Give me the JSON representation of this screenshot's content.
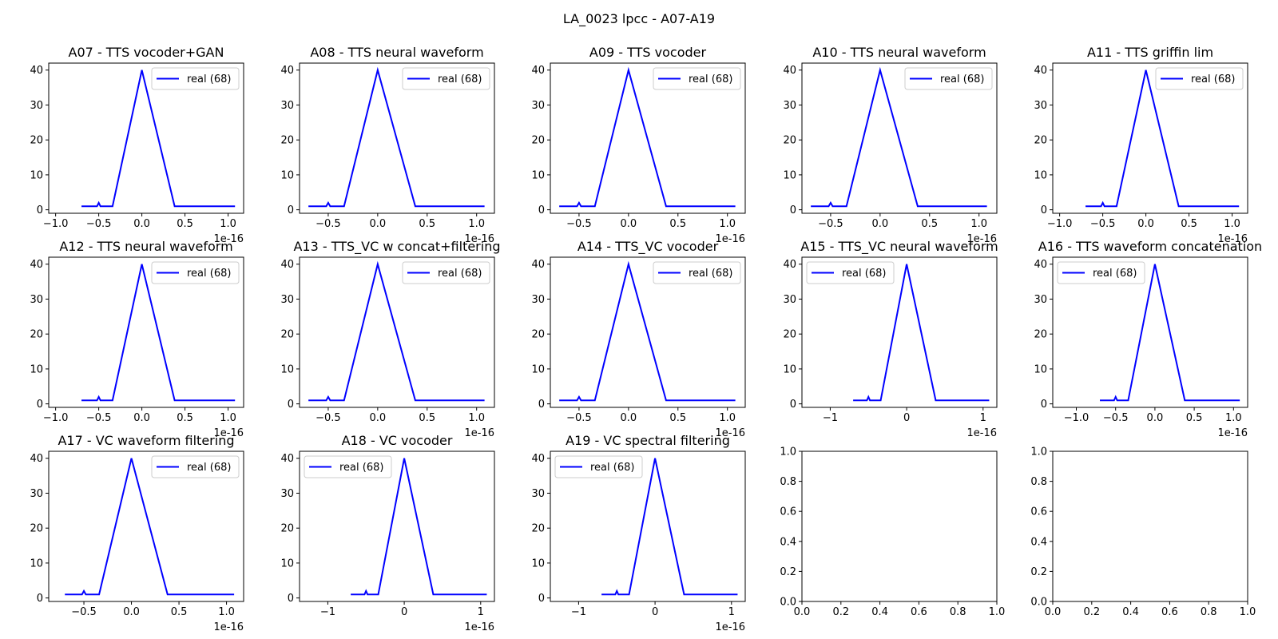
{
  "figure": {
    "suptitle": "LA_0023 lpcc - A07-A19"
  },
  "chart_data": [
    {
      "type": "line",
      "title": "A07 - TTS vocoder+GAN",
      "xlim": [
        -1.08,
        1.18
      ],
      "xticks": [
        -1.0,
        -0.5,
        0.0,
        0.5,
        1.0
      ],
      "x_offset_label": "1e-16",
      "ylim": [
        -1,
        42
      ],
      "yticks": [
        0,
        10,
        20,
        30,
        40
      ],
      "legend": {
        "position": "top-right",
        "entries": [
          "real (68)"
        ]
      },
      "series": [
        {
          "name": "real (68)",
          "color": "#0000ff",
          "x": [
            -0.7,
            -0.52,
            -0.5,
            -0.48,
            -0.34,
            0.0,
            0.38,
            1.08
          ],
          "y": [
            1,
            1,
            2,
            1,
            1,
            40,
            1,
            1
          ]
        }
      ]
    },
    {
      "type": "line",
      "title": "A08 - TTS neural waveform",
      "xlim": [
        -0.79,
        1.18
      ],
      "xticks": [
        -0.5,
        0.0,
        0.5,
        1.0
      ],
      "x_offset_label": "1e-16",
      "ylim": [
        -1,
        42
      ],
      "yticks": [
        0,
        10,
        20,
        30,
        40
      ],
      "legend": {
        "position": "top-right",
        "entries": [
          "real (68)"
        ]
      },
      "series": [
        {
          "name": "real (68)",
          "color": "#0000ff",
          "x": [
            -0.7,
            -0.52,
            -0.5,
            -0.48,
            -0.34,
            0.0,
            0.38,
            1.08
          ],
          "y": [
            1,
            1,
            2,
            1,
            1,
            40,
            1,
            1
          ]
        }
      ]
    },
    {
      "type": "line",
      "title": "A09 - TTS vocoder",
      "xlim": [
        -0.79,
        1.18
      ],
      "xticks": [
        -0.5,
        0.0,
        0.5,
        1.0
      ],
      "x_offset_label": "1e-16",
      "ylim": [
        -1,
        42
      ],
      "yticks": [
        0,
        10,
        20,
        30,
        40
      ],
      "legend": {
        "position": "top-right",
        "entries": [
          "real (68)"
        ]
      },
      "series": [
        {
          "name": "real (68)",
          "color": "#0000ff",
          "x": [
            -0.7,
            -0.52,
            -0.5,
            -0.48,
            -0.34,
            0.0,
            0.38,
            1.08
          ],
          "y": [
            1,
            1,
            2,
            1,
            1,
            40,
            1,
            1
          ]
        }
      ]
    },
    {
      "type": "line",
      "title": "A10 - TTS neural waveform",
      "xlim": [
        -0.79,
        1.18
      ],
      "xticks": [
        -0.5,
        0.0,
        0.5,
        1.0
      ],
      "x_offset_label": "1e-16",
      "ylim": [
        -1,
        42
      ],
      "yticks": [
        0,
        10,
        20,
        30,
        40
      ],
      "legend": {
        "position": "top-right",
        "entries": [
          "real (68)"
        ]
      },
      "series": [
        {
          "name": "real (68)",
          "color": "#0000ff",
          "x": [
            -0.7,
            -0.52,
            -0.5,
            -0.48,
            -0.34,
            0.0,
            0.38,
            1.08
          ],
          "y": [
            1,
            1,
            2,
            1,
            1,
            40,
            1,
            1
          ]
        }
      ]
    },
    {
      "type": "line",
      "title": "A11 - TTS griffin lim",
      "xlim": [
        -1.08,
        1.18
      ],
      "xticks": [
        -1.0,
        -0.5,
        0.0,
        0.5,
        1.0
      ],
      "x_offset_label": "1e-16",
      "ylim": [
        -1,
        42
      ],
      "yticks": [
        0,
        10,
        20,
        30,
        40
      ],
      "legend": {
        "position": "top-right",
        "entries": [
          "real (68)"
        ]
      },
      "series": [
        {
          "name": "real (68)",
          "color": "#0000ff",
          "x": [
            -0.7,
            -0.52,
            -0.5,
            -0.48,
            -0.34,
            0.0,
            0.38,
            1.08
          ],
          "y": [
            1,
            1,
            2,
            1,
            1,
            40,
            1,
            1
          ]
        }
      ]
    },
    {
      "type": "line",
      "title": "A12 - TTS neural waveform",
      "xlim": [
        -1.08,
        1.18
      ],
      "xticks": [
        -1.0,
        -0.5,
        0.0,
        0.5,
        1.0
      ],
      "x_offset_label": "1e-16",
      "ylim": [
        -1,
        42
      ],
      "yticks": [
        0,
        10,
        20,
        30,
        40
      ],
      "legend": {
        "position": "top-right",
        "entries": [
          "real (68)"
        ]
      },
      "series": [
        {
          "name": "real (68)",
          "color": "#0000ff",
          "x": [
            -0.7,
            -0.52,
            -0.5,
            -0.48,
            -0.34,
            0.0,
            0.38,
            1.08
          ],
          "y": [
            1,
            1,
            2,
            1,
            1,
            40,
            1,
            1
          ]
        }
      ]
    },
    {
      "type": "line",
      "title": "A13 - TTS_VC w concat+filtering",
      "xlim": [
        -0.79,
        1.18
      ],
      "xticks": [
        -0.5,
        0.0,
        0.5,
        1.0
      ],
      "x_offset_label": "1e-16",
      "ylim": [
        -1,
        42
      ],
      "yticks": [
        0,
        10,
        20,
        30,
        40
      ],
      "legend": {
        "position": "top-right",
        "entries": [
          "real (68)"
        ]
      },
      "series": [
        {
          "name": "real (68)",
          "color": "#0000ff",
          "x": [
            -0.7,
            -0.52,
            -0.5,
            -0.48,
            -0.34,
            0.0,
            0.38,
            1.08
          ],
          "y": [
            1,
            1,
            2,
            1,
            1,
            40,
            1,
            1
          ]
        }
      ]
    },
    {
      "type": "line",
      "title": "A14 - TTS_VC vocoder",
      "xlim": [
        -0.79,
        1.18
      ],
      "xticks": [
        -0.5,
        0.0,
        0.5,
        1.0
      ],
      "x_offset_label": "1e-16",
      "ylim": [
        -1,
        42
      ],
      "yticks": [
        0,
        10,
        20,
        30,
        40
      ],
      "legend": {
        "position": "top-right",
        "entries": [
          "real (68)"
        ]
      },
      "series": [
        {
          "name": "real (68)",
          "color": "#0000ff",
          "x": [
            -0.7,
            -0.52,
            -0.5,
            -0.48,
            -0.34,
            0.0,
            0.38,
            1.08
          ],
          "y": [
            1,
            1,
            2,
            1,
            1,
            40,
            1,
            1
          ]
        }
      ]
    },
    {
      "type": "line",
      "title": "A15 - TTS_VC neural waveform",
      "xlim": [
        -1.37,
        1.18
      ],
      "xticks": [
        -1,
        0,
        1
      ],
      "x_offset_label": "1e-16",
      "ylim": [
        -1,
        42
      ],
      "yticks": [
        0,
        10,
        20,
        30,
        40
      ],
      "legend": {
        "position": "top-left",
        "entries": [
          "real (68)"
        ]
      },
      "series": [
        {
          "name": "real (68)",
          "color": "#0000ff",
          "x": [
            -0.7,
            -0.52,
            -0.5,
            -0.48,
            -0.34,
            0.0,
            0.38,
            1.08
          ],
          "y": [
            1,
            1,
            2,
            1,
            1,
            40,
            1,
            1
          ]
        }
      ]
    },
    {
      "type": "line",
      "title": "A16 - TTS waveform concatenation",
      "xlim": [
        -1.3,
        1.18
      ],
      "xticks": [
        -1.0,
        -0.5,
        0.0,
        0.5,
        1.0
      ],
      "x_offset_label": "1e-16",
      "ylim": [
        -1,
        42
      ],
      "yticks": [
        0,
        10,
        20,
        30,
        40
      ],
      "legend": {
        "position": "top-left",
        "entries": [
          "real (68)"
        ]
      },
      "series": [
        {
          "name": "real (68)",
          "color": "#0000ff",
          "x": [
            -0.7,
            -0.52,
            -0.5,
            -0.48,
            -0.34,
            0.0,
            0.38,
            1.08
          ],
          "y": [
            1,
            1,
            2,
            1,
            1,
            40,
            1,
            1
          ]
        }
      ]
    },
    {
      "type": "line",
      "title": "A17 - VC waveform filtering",
      "xlim": [
        -0.87,
        1.18
      ],
      "xticks": [
        -0.5,
        0.0,
        0.5,
        1.0
      ],
      "x_offset_label": "1e-16",
      "ylim": [
        -1,
        42
      ],
      "yticks": [
        0,
        10,
        20,
        30,
        40
      ],
      "legend": {
        "position": "top-right",
        "entries": [
          "real (68)"
        ]
      },
      "series": [
        {
          "name": "real (68)",
          "color": "#0000ff",
          "x": [
            -0.7,
            -0.52,
            -0.5,
            -0.48,
            -0.34,
            0.0,
            0.38,
            1.08
          ],
          "y": [
            1,
            1,
            2,
            1,
            1,
            40,
            1,
            1
          ]
        }
      ]
    },
    {
      "type": "line",
      "title": "A18 - VC vocoder",
      "xlim": [
        -1.37,
        1.18
      ],
      "xticks": [
        -1,
        0,
        1
      ],
      "x_offset_label": "1e-16",
      "ylim": [
        -1,
        42
      ],
      "yticks": [
        0,
        10,
        20,
        30,
        40
      ],
      "legend": {
        "position": "top-left",
        "entries": [
          "real (68)"
        ]
      },
      "series": [
        {
          "name": "real (68)",
          "color": "#0000ff",
          "x": [
            -0.7,
            -0.52,
            -0.5,
            -0.48,
            -0.34,
            0.0,
            0.38,
            1.08
          ],
          "y": [
            1,
            1,
            2,
            1,
            1,
            40,
            1,
            1
          ]
        }
      ]
    },
    {
      "type": "line",
      "title": "A19 - VC spectral filtering",
      "xlim": [
        -1.37,
        1.18
      ],
      "xticks": [
        -1,
        0,
        1
      ],
      "x_offset_label": "1e-16",
      "ylim": [
        -1,
        42
      ],
      "yticks": [
        0,
        10,
        20,
        30,
        40
      ],
      "legend": {
        "position": "top-left",
        "entries": [
          "real (68)"
        ]
      },
      "series": [
        {
          "name": "real (68)",
          "color": "#0000ff",
          "x": [
            -0.7,
            -0.52,
            -0.5,
            -0.48,
            -0.34,
            0.0,
            0.38,
            1.08
          ],
          "y": [
            1,
            1,
            2,
            1,
            1,
            40,
            1,
            1
          ]
        }
      ]
    },
    {
      "type": "line",
      "title": "",
      "xlim": [
        0,
        1
      ],
      "xticks": [
        0.0,
        0.2,
        0.4,
        0.6,
        0.8,
        1.0
      ],
      "x_offset_label": "",
      "ylim": [
        0,
        1
      ],
      "yticks": [
        0.0,
        0.2,
        0.4,
        0.6,
        0.8,
        1.0
      ],
      "series": []
    },
    {
      "type": "line",
      "title": "",
      "xlim": [
        0,
        1
      ],
      "xticks": [
        0.0,
        0.2,
        0.4,
        0.6,
        0.8,
        1.0
      ],
      "x_offset_label": "",
      "ylim": [
        0,
        1
      ],
      "yticks": [
        0.0,
        0.2,
        0.4,
        0.6,
        0.8,
        1.0
      ],
      "series": []
    }
  ]
}
